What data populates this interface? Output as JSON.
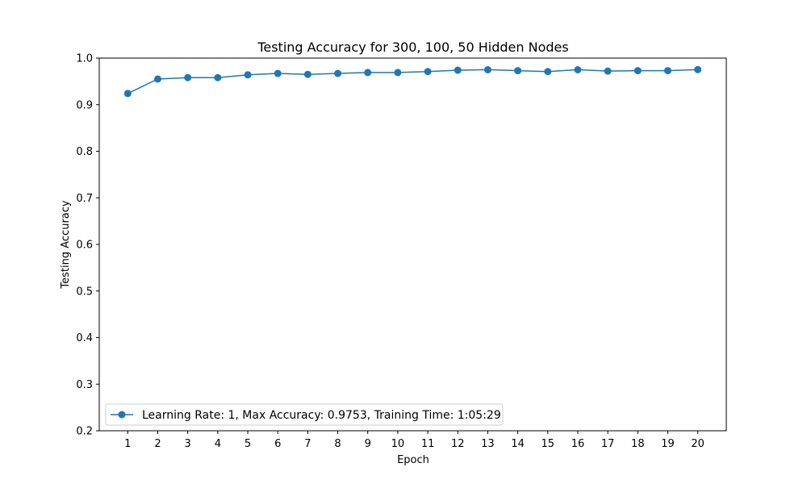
{
  "chart_data": {
    "type": "line",
    "title": "Testing Accuracy for 300, 100, 50 Hidden Nodes",
    "xlabel": "Epoch",
    "ylabel": "Testing Accuracy",
    "x": [
      1,
      2,
      3,
      4,
      5,
      6,
      7,
      8,
      9,
      10,
      11,
      12,
      13,
      14,
      15,
      16,
      17,
      18,
      19,
      20
    ],
    "xticks": [
      "1",
      "2",
      "3",
      "4",
      "5",
      "6",
      "7",
      "8",
      "9",
      "10",
      "11",
      "12",
      "13",
      "14",
      "15",
      "16",
      "17",
      "18",
      "19",
      "20"
    ],
    "xlim": [
      0.05,
      20.95
    ],
    "ylim": [
      0.2,
      1.0
    ],
    "yticks": [
      "0.2",
      "0.3",
      "0.4",
      "0.5",
      "0.6",
      "0.7",
      "0.8",
      "0.9",
      "1.0"
    ],
    "series": [
      {
        "name": "Learning Rate: 1, Max Accuracy: 0.9753, Training Time: 1:05:29",
        "color": "#1f77b4",
        "marker": "circle",
        "values": [
          0.924,
          0.955,
          0.958,
          0.958,
          0.964,
          0.967,
          0.965,
          0.967,
          0.969,
          0.969,
          0.971,
          0.974,
          0.975,
          0.973,
          0.971,
          0.975,
          0.972,
          0.973,
          0.973,
          0.9753
        ]
      }
    ],
    "legend_position": "lower-left",
    "grid": false
  }
}
